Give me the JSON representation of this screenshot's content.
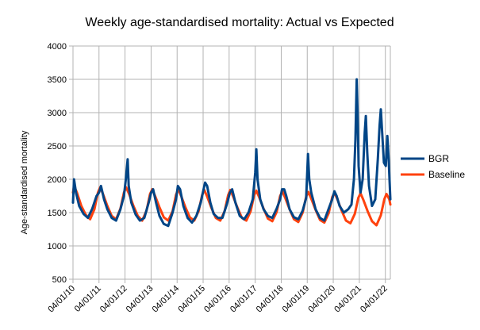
{
  "chart_data": {
    "type": "line",
    "title": "Weekly age-standardised mortality: Actual vs Expected",
    "xlabel": "",
    "ylabel": "Age-standardised mortality",
    "ylim": [
      500,
      4000
    ],
    "yticks": [
      500,
      1000,
      1500,
      2000,
      2500,
      3000,
      3500,
      4000
    ],
    "xticks": [
      "04/01/10",
      "04/01/11",
      "04/01/12",
      "04/01/13",
      "04/01/14",
      "04/01/15",
      "04/01/16",
      "04/01/17",
      "04/01/18",
      "04/01/19",
      "04/01/20",
      "04/01/21",
      "04/01/22"
    ],
    "xlim": [
      "2010-01-04",
      "2022-03-15"
    ],
    "grid": true,
    "legend_position": "right",
    "series": [
      {
        "name": "BGR",
        "color": "#004586",
        "points": [
          [
            "2010-01-04",
            1650
          ],
          [
            "2010-01-18",
            2000
          ],
          [
            "2010-02-15",
            1800
          ],
          [
            "2010-04-01",
            1600
          ],
          [
            "2010-06-01",
            1480
          ],
          [
            "2010-08-01",
            1420
          ],
          [
            "2010-10-01",
            1560
          ],
          [
            "2010-12-01",
            1750
          ],
          [
            "2011-01-04",
            1800
          ],
          [
            "2011-02-01",
            1900
          ],
          [
            "2011-03-15",
            1700
          ],
          [
            "2011-05-01",
            1550
          ],
          [
            "2011-07-01",
            1420
          ],
          [
            "2011-09-01",
            1380
          ],
          [
            "2011-11-01",
            1550
          ],
          [
            "2011-12-20",
            1750
          ],
          [
            "2012-01-15",
            2000
          ],
          [
            "2012-02-10",
            2300
          ],
          [
            "2012-02-25",
            1900
          ],
          [
            "2012-04-01",
            1650
          ],
          [
            "2012-06-01",
            1470
          ],
          [
            "2012-08-01",
            1380
          ],
          [
            "2012-10-01",
            1420
          ],
          [
            "2012-12-01",
            1650
          ],
          [
            "2013-01-04",
            1800
          ],
          [
            "2013-02-01",
            1850
          ],
          [
            "2013-03-15",
            1650
          ],
          [
            "2013-05-01",
            1450
          ],
          [
            "2013-07-01",
            1330
          ],
          [
            "2013-09-01",
            1300
          ],
          [
            "2013-11-01",
            1500
          ],
          [
            "2013-12-20",
            1700
          ],
          [
            "2014-01-15",
            1900
          ],
          [
            "2014-02-15",
            1850
          ],
          [
            "2014-04-01",
            1600
          ],
          [
            "2014-06-01",
            1420
          ],
          [
            "2014-08-01",
            1350
          ],
          [
            "2014-10-01",
            1450
          ],
          [
            "2014-12-01",
            1650
          ],
          [
            "2015-01-10",
            1850
          ],
          [
            "2015-02-01",
            1950
          ],
          [
            "2015-03-01",
            1900
          ],
          [
            "2015-04-15",
            1650
          ],
          [
            "2015-06-01",
            1480
          ],
          [
            "2015-08-01",
            1420
          ],
          [
            "2015-10-01",
            1420
          ],
          [
            "2015-12-01",
            1620
          ],
          [
            "2016-01-15",
            1800
          ],
          [
            "2016-02-15",
            1850
          ],
          [
            "2016-04-01",
            1650
          ],
          [
            "2016-06-01",
            1450
          ],
          [
            "2016-08-01",
            1400
          ],
          [
            "2016-10-01",
            1500
          ],
          [
            "2016-12-01",
            1700
          ],
          [
            "2017-01-04",
            2100
          ],
          [
            "2017-01-20",
            2450
          ],
          [
            "2017-02-05",
            2000
          ],
          [
            "2017-03-15",
            1700
          ],
          [
            "2017-05-01",
            1550
          ],
          [
            "2017-07-01",
            1450
          ],
          [
            "2017-09-01",
            1420
          ],
          [
            "2017-11-01",
            1560
          ],
          [
            "2017-12-20",
            1700
          ],
          [
            "2018-01-15",
            1850
          ],
          [
            "2018-02-15",
            1850
          ],
          [
            "2018-03-15",
            1750
          ],
          [
            "2018-05-01",
            1550
          ],
          [
            "2018-07-01",
            1430
          ],
          [
            "2018-09-01",
            1400
          ],
          [
            "2018-11-01",
            1530
          ],
          [
            "2018-12-20",
            1720
          ],
          [
            "2019-01-15",
            2380
          ],
          [
            "2019-02-01",
            2000
          ],
          [
            "2019-03-01",
            1800
          ],
          [
            "2019-05-01",
            1550
          ],
          [
            "2019-07-01",
            1420
          ],
          [
            "2019-09-01",
            1380
          ],
          [
            "2019-11-01",
            1560
          ],
          [
            "2019-12-20",
            1700
          ],
          [
            "2020-01-20",
            1820
          ],
          [
            "2020-02-20",
            1750
          ],
          [
            "2020-04-01",
            1600
          ],
          [
            "2020-06-01",
            1500
          ],
          [
            "2020-08-01",
            1550
          ],
          [
            "2020-09-15",
            1620
          ],
          [
            "2020-10-20",
            2000
          ],
          [
            "2020-11-10",
            2600
          ],
          [
            "2020-11-28",
            3500
          ],
          [
            "2020-12-10",
            3000
          ],
          [
            "2020-12-25",
            2200
          ],
          [
            "2021-01-20",
            1800
          ],
          [
            "2021-02-20",
            2000
          ],
          [
            "2021-03-20",
            2700
          ],
          [
            "2021-04-05",
            2950
          ],
          [
            "2021-04-25",
            2400
          ],
          [
            "2021-05-20",
            1900
          ],
          [
            "2021-07-01",
            1600
          ],
          [
            "2021-08-15",
            1700
          ],
          [
            "2021-09-20",
            2300
          ],
          [
            "2021-10-15",
            2800
          ],
          [
            "2021-11-01",
            3050
          ],
          [
            "2021-11-20",
            2700
          ],
          [
            "2021-12-15",
            2250
          ],
          [
            "2022-01-10",
            2200
          ],
          [
            "2022-02-01",
            2650
          ],
          [
            "2022-02-20",
            2300
          ],
          [
            "2022-03-15",
            1700
          ]
        ]
      },
      {
        "name": "Baseline",
        "color": "#ff420e",
        "points": [
          [
            "2010-01-04",
            1800
          ],
          [
            "2010-01-18",
            1900
          ],
          [
            "2010-03-01",
            1800
          ],
          [
            "2010-05-01",
            1600
          ],
          [
            "2010-07-01",
            1470
          ],
          [
            "2010-09-01",
            1400
          ],
          [
            "2010-11-01",
            1550
          ],
          [
            "2010-12-20",
            1800
          ],
          [
            "2011-01-20",
            1880
          ],
          [
            "2011-03-01",
            1780
          ],
          [
            "2011-05-01",
            1600
          ],
          [
            "2011-07-01",
            1450
          ],
          [
            "2011-09-01",
            1400
          ],
          [
            "2011-11-01",
            1560
          ],
          [
            "2011-12-20",
            1800
          ],
          [
            "2012-01-20",
            1880
          ],
          [
            "2012-03-01",
            1780
          ],
          [
            "2012-05-01",
            1600
          ],
          [
            "2012-07-01",
            1450
          ],
          [
            "2012-09-01",
            1380
          ],
          [
            "2012-11-01",
            1530
          ],
          [
            "2012-12-20",
            1780
          ],
          [
            "2013-01-20",
            1850
          ],
          [
            "2013-03-01",
            1750
          ],
          [
            "2013-05-01",
            1580
          ],
          [
            "2013-07-01",
            1430
          ],
          [
            "2013-09-01",
            1380
          ],
          [
            "2013-11-01",
            1520
          ],
          [
            "2013-12-20",
            1770
          ],
          [
            "2014-01-20",
            1850
          ],
          [
            "2014-03-01",
            1750
          ],
          [
            "2014-05-01",
            1580
          ],
          [
            "2014-07-01",
            1430
          ],
          [
            "2014-09-01",
            1380
          ],
          [
            "2014-11-01",
            1520
          ],
          [
            "2014-12-20",
            1760
          ],
          [
            "2015-01-20",
            1840
          ],
          [
            "2015-03-01",
            1740
          ],
          [
            "2015-05-01",
            1570
          ],
          [
            "2015-07-01",
            1420
          ],
          [
            "2015-09-01",
            1380
          ],
          [
            "2015-11-01",
            1520
          ],
          [
            "2015-12-20",
            1760
          ],
          [
            "2016-01-20",
            1840
          ],
          [
            "2016-03-01",
            1740
          ],
          [
            "2016-05-01",
            1570
          ],
          [
            "2016-07-01",
            1420
          ],
          [
            "2016-09-01",
            1380
          ],
          [
            "2016-11-01",
            1520
          ],
          [
            "2016-12-20",
            1760
          ],
          [
            "2017-01-20",
            1830
          ],
          [
            "2017-03-01",
            1730
          ],
          [
            "2017-05-01",
            1560
          ],
          [
            "2017-07-01",
            1410
          ],
          [
            "2017-09-01",
            1370
          ],
          [
            "2017-11-01",
            1510
          ],
          [
            "2017-12-20",
            1750
          ],
          [
            "2018-01-20",
            1820
          ],
          [
            "2018-03-01",
            1720
          ],
          [
            "2018-05-01",
            1550
          ],
          [
            "2018-07-01",
            1400
          ],
          [
            "2018-09-01",
            1360
          ],
          [
            "2018-11-01",
            1500
          ],
          [
            "2018-12-20",
            1740
          ],
          [
            "2019-01-20",
            1810
          ],
          [
            "2019-03-01",
            1710
          ],
          [
            "2019-05-01",
            1540
          ],
          [
            "2019-07-01",
            1390
          ],
          [
            "2019-09-01",
            1350
          ],
          [
            "2019-11-01",
            1490
          ],
          [
            "2019-12-20",
            1730
          ],
          [
            "2020-01-20",
            1800
          ],
          [
            "2020-03-01",
            1700
          ],
          [
            "2020-05-01",
            1530
          ],
          [
            "2020-07-01",
            1380
          ],
          [
            "2020-09-01",
            1340
          ],
          [
            "2020-11-01",
            1480
          ],
          [
            "2020-12-20",
            1720
          ],
          [
            "2021-01-20",
            1790
          ],
          [
            "2021-03-01",
            1690
          ],
          [
            "2021-05-01",
            1520
          ],
          [
            "2021-07-01",
            1370
          ],
          [
            "2021-09-01",
            1310
          ],
          [
            "2021-11-01",
            1460
          ],
          [
            "2021-12-20",
            1700
          ],
          [
            "2022-01-20",
            1780
          ],
          [
            "2022-03-01",
            1700
          ],
          [
            "2022-03-15",
            1620
          ]
        ]
      }
    ]
  }
}
